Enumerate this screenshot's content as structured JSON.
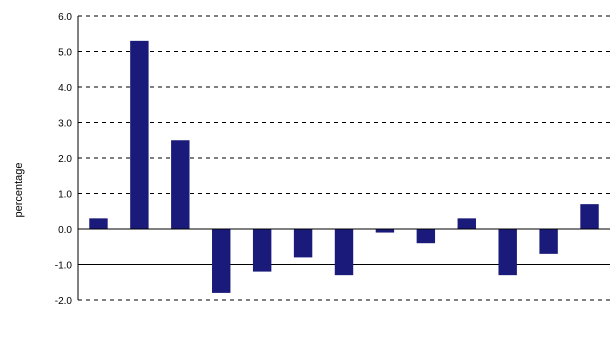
{
  "chart_data": {
    "type": "bar",
    "title": "",
    "xlabel": "",
    "ylabel": "percentage",
    "ylim": [
      -2.0,
      6.0
    ],
    "yticks": [
      "-2.0",
      "-1.0",
      "0.0",
      "1.0",
      "2.0",
      "3.0",
      "4.0",
      "5.0",
      "6.0"
    ],
    "grid": true,
    "legend": "none",
    "bar_color": "#1a1a7a",
    "categories": [
      "",
      "",
      "",
      "",
      "",
      "",
      "",
      "",
      "",
      "",
      "",
      "",
      ""
    ],
    "values": [
      0.3,
      5.3,
      2.5,
      -1.8,
      -1.2,
      -0.8,
      -1.3,
      -0.1,
      -0.4,
      0.3,
      -1.3,
      -0.7,
      0.7
    ]
  }
}
